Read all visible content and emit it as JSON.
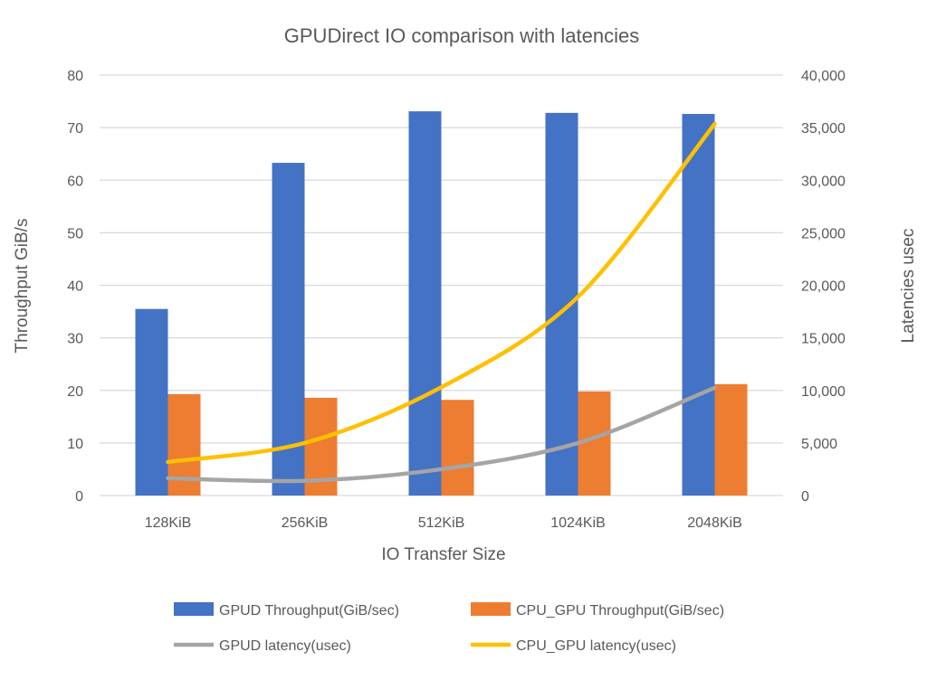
{
  "chart_data": {
    "type": "bar+line",
    "title": "GPUDirect IO comparison with latencies",
    "xlabel": "IO Transfer Size",
    "ylabel": "Throughput GiB/s",
    "y2label": "Latencies usec",
    "categories": [
      "128KiB",
      "256KiB",
      "512KiB",
      "1024KiB",
      "2048KiB"
    ],
    "ylim": [
      0,
      80
    ],
    "yticks": [
      "0",
      "10",
      "20",
      "30",
      "40",
      "50",
      "60",
      "70",
      "80"
    ],
    "y2lim": [
      0,
      40000
    ],
    "y2ticks": [
      "0",
      "5,000",
      "10,000",
      "15,000",
      "20,000",
      "25,000",
      "30,000",
      "35,000",
      "40,000"
    ],
    "grid": true,
    "legend_position": "bottom",
    "series": [
      {
        "name": "GPUD Throughput(GiB/sec)",
        "kind": "bar",
        "axis": "left",
        "color": "#4472C4",
        "values": [
          35.5,
          63.3,
          73.1,
          72.8,
          72.6
        ]
      },
      {
        "name": "CPU_GPU Throughput(GiB/sec)",
        "kind": "bar",
        "axis": "left",
        "color": "#ED7D31",
        "values": [
          19.3,
          18.6,
          18.2,
          19.8,
          21.2
        ]
      },
      {
        "name": "GPUD latency(usec)",
        "kind": "line",
        "axis": "right",
        "color": "#A5A5A5",
        "values": [
          1650,
          1400,
          2500,
          5000,
          10250
        ]
      },
      {
        "name": "CPU_GPU latency(usec)",
        "kind": "line",
        "axis": "right",
        "color": "#FFC000",
        "values": [
          3200,
          5000,
          10300,
          18900,
          35350
        ]
      }
    ]
  }
}
